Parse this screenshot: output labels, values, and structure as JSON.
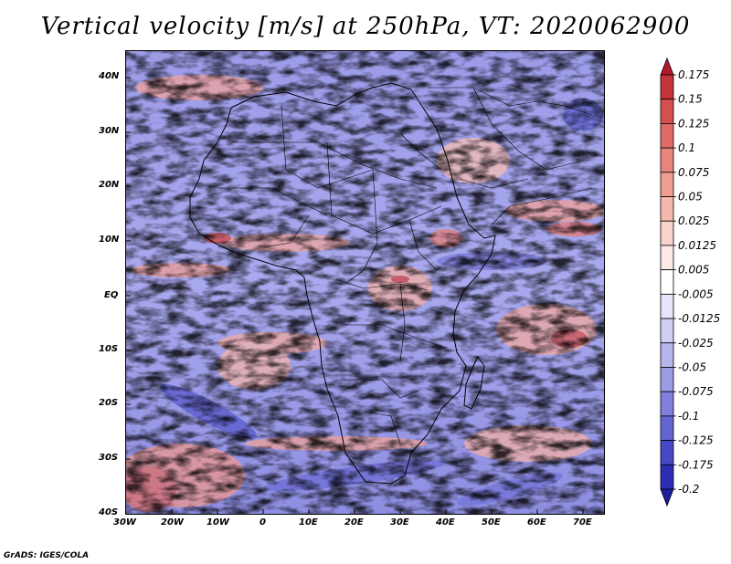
{
  "title": "Vertical velocity [m/s] at 250hPa, VT: 2020062900",
  "footer": "GrADS: IGES/COLA",
  "map": {
    "region": "Africa",
    "field": "vertical velocity",
    "level": "250hPa"
  },
  "axes": {
    "lat_labels": [
      "40N",
      "30N",
      "20N",
      "10N",
      "EQ",
      "10S",
      "20S",
      "30S",
      "40S"
    ],
    "lon_labels": [
      "30W",
      "20W",
      "10W",
      "0",
      "10E",
      "20E",
      "30E",
      "40E",
      "50E",
      "60E",
      "70E"
    ]
  },
  "colorbar": {
    "labels": [
      "0.175",
      "0.15",
      "0.125",
      "0.1",
      "0.075",
      "0.05",
      "0.025",
      "0.0125",
      "0.005",
      "-0.005",
      "-0.0125",
      "-0.025",
      "-0.05",
      "-0.075",
      "-0.1",
      "-0.125",
      "-0.175",
      "-0.2"
    ],
    "colors": [
      "#b2182b",
      "#c8323a",
      "#d6504f",
      "#e06b66",
      "#e8857d",
      "#f09e93",
      "#f5b8ae",
      "#f9d2ca",
      "#fce9e6",
      "#ffffff",
      "#e6e6f8",
      "#cfcff2",
      "#b6b6ec",
      "#9c9ce5",
      "#8080dc",
      "#6464d2",
      "#4848c6",
      "#2c2cb4",
      "#1c1ca0"
    ]
  }
}
